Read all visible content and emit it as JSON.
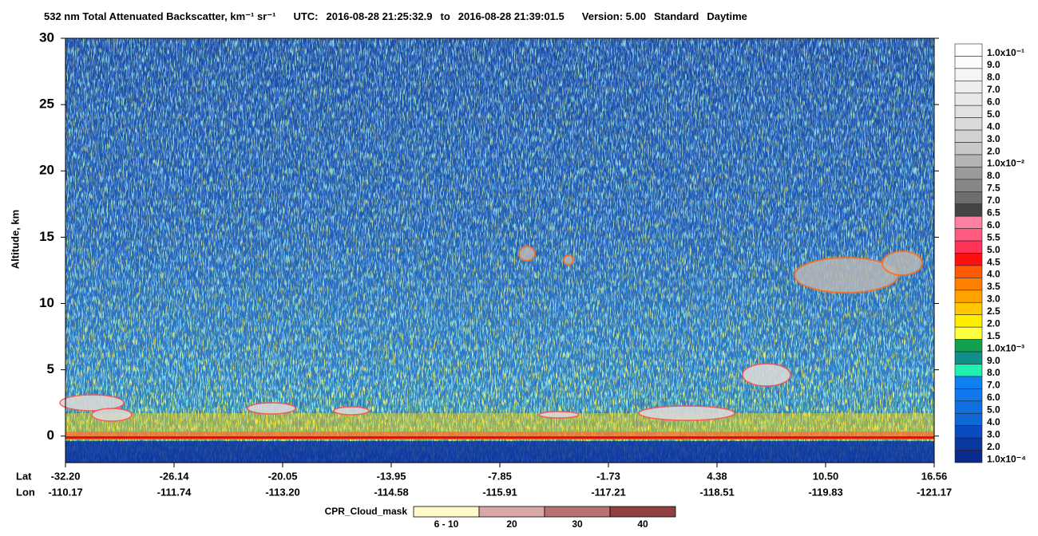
{
  "chart_data": {
    "type": "heatmap",
    "title": "532 nm Total Attenuated Backscatter, km⁻¹ sr⁻¹",
    "utc_label": "UTC:",
    "utc_start": "2016-08-28 21:25:32.9",
    "utc_to": "to",
    "utc_end": "2016-08-28 21:39:01.5",
    "version": "Version: 5.00",
    "product": "Standard",
    "daytime": "Daytime",
    "ylabel": "Altitude, km",
    "ylim": [
      -2,
      30
    ],
    "yticks": [
      0,
      5,
      10,
      15,
      20,
      25,
      30
    ],
    "x_row_labels": [
      "Lat",
      "Lon"
    ],
    "lat": [
      "-32.20",
      "-26.14",
      "-20.05",
      "-13.95",
      "-7.85",
      "-1.73",
      "4.38",
      "10.50",
      "16.56"
    ],
    "lon": [
      "-110.17",
      "-111.74",
      "-113.20",
      "-114.58",
      "-115.91",
      "-117.21",
      "-118.51",
      "-119.83",
      "-121.17"
    ],
    "colorbar": [
      {
        "value": 0.1,
        "label": "1.0x10⁻¹",
        "color": "#ffffff"
      },
      {
        "value": 0.09,
        "label": "9.0",
        "color": "#fbfbfb"
      },
      {
        "value": 0.08,
        "label": "8.0",
        "color": "#f5f5f5"
      },
      {
        "value": 0.07,
        "label": "7.0",
        "color": "#eeeeee"
      },
      {
        "value": 0.06,
        "label": "6.0",
        "color": "#e8e8e8"
      },
      {
        "value": 0.05,
        "label": "5.0",
        "color": "#e1e1e1"
      },
      {
        "value": 0.04,
        "label": "4.0",
        "color": "#dadada"
      },
      {
        "value": 0.03,
        "label": "3.0",
        "color": "#d2d2d2"
      },
      {
        "value": 0.02,
        "label": "2.0",
        "color": "#c8c8c8"
      },
      {
        "value": 0.01,
        "label": "1.0x10⁻²",
        "color": "#b4b4b4"
      },
      {
        "value": 0.008,
        "label": "8.0",
        "color": "#9a9a9a"
      },
      {
        "value": 0.0075,
        "label": "7.5",
        "color": "#878787"
      },
      {
        "value": 0.007,
        "label": "7.0",
        "color": "#6e6e6e"
      },
      {
        "value": 0.0065,
        "label": "6.5",
        "color": "#444444"
      },
      {
        "value": 0.006,
        "label": "6.0",
        "color": "#ff7fa0"
      },
      {
        "value": 0.0055,
        "label": "5.5",
        "color": "#ff5a80"
      },
      {
        "value": 0.005,
        "label": "5.0",
        "color": "#ff3355"
      },
      {
        "value": 0.0045,
        "label": "4.5",
        "color": "#ff1010"
      },
      {
        "value": 0.004,
        "label": "4.0",
        "color": "#ff5a00"
      },
      {
        "value": 0.0035,
        "label": "3.5",
        "color": "#ff8000"
      },
      {
        "value": 0.003,
        "label": "3.0",
        "color": "#ffa200"
      },
      {
        "value": 0.0025,
        "label": "2.5",
        "color": "#ffc800"
      },
      {
        "value": 0.002,
        "label": "2.0",
        "color": "#ffee00"
      },
      {
        "value": 0.0015,
        "label": "1.5",
        "color": "#ffff40"
      },
      {
        "value": 0.001,
        "label": "1.0x10⁻³",
        "color": "#10a050"
      },
      {
        "value": 0.0009,
        "label": "9.0",
        "color": "#10908a"
      },
      {
        "value": 0.0008,
        "label": "8.0",
        "color": "#20f0b0"
      },
      {
        "value": 0.0007,
        "label": "7.0",
        "color": "#1080f0"
      },
      {
        "value": 0.0006,
        "label": "6.0",
        "color": "#1078ec"
      },
      {
        "value": 0.0005,
        "label": "5.0",
        "color": "#1070e0"
      },
      {
        "value": 0.0004,
        "label": "4.0",
        "color": "#1068d8"
      },
      {
        "value": 0.0003,
        "label": "3.0",
        "color": "#0a4cc0"
      },
      {
        "value": 0.0002,
        "label": "2.0",
        "color": "#0838a0"
      },
      {
        "value": 0.0001,
        "label": "1.0x10⁻⁴",
        "color": "#0a2a8c"
      }
    ],
    "cloud_mask": {
      "title": "CPR_Cloud_mask",
      "labels": [
        "6 - 10",
        "20",
        "30",
        "40"
      ],
      "colors": [
        "#fffac8",
        "#d8a8a8",
        "#b87070",
        "#904040"
      ]
    }
  }
}
